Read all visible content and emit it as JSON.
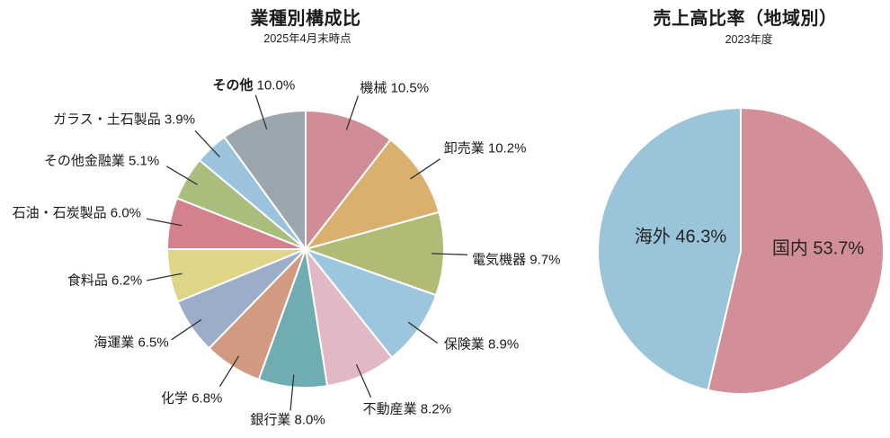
{
  "chart_data": [
    {
      "type": "pie",
      "title": "業種別構成比",
      "subtitle": "2025年4月末時点",
      "unit": "%",
      "start_angle": "12-oclock",
      "direction": "clockwise",
      "legend_position": "none",
      "label_style": "outside-with-leader-lines",
      "slices": [
        {
          "label": "機械",
          "value": 10.5,
          "color": "#d08d96"
        },
        {
          "label": "卸売業",
          "value": 10.2,
          "color": "#d9b06e"
        },
        {
          "label": "電気機器",
          "value": 9.7,
          "color": "#b1bb75"
        },
        {
          "label": "保険業",
          "value": 8.9,
          "color": "#9cc6de"
        },
        {
          "label": "不動産業",
          "value": 8.2,
          "color": "#e2b8c7"
        },
        {
          "label": "銀行業",
          "value": 8.0,
          "color": "#6fadb2"
        },
        {
          "label": "化学",
          "value": 6.8,
          "color": "#d19a81"
        },
        {
          "label": "海運業",
          "value": 6.5,
          "color": "#9badc8"
        },
        {
          "label": "食料品",
          "value": 6.2,
          "color": "#ded687"
        },
        {
          "label": "石油・石炭製品",
          "value": 6.0,
          "color": "#d5808d"
        },
        {
          "label": "その他金融業",
          "value": 5.1,
          "color": "#a9bd7d"
        },
        {
          "label": "ガラス・土石製品",
          "value": 3.9,
          "color": "#9bc3dd"
        },
        {
          "label": "その他",
          "value": 10.0,
          "color": "#9ba6ae"
        }
      ]
    },
    {
      "type": "pie",
      "title": "売上高比率（地域別）",
      "subtitle": "2023年度",
      "unit": "%",
      "start_angle": "12-oclock",
      "direction": "clockwise",
      "legend_position": "none",
      "label_style": "inside",
      "slices": [
        {
          "label": "国内",
          "value": 53.7,
          "color": "#d28f97"
        },
        {
          "label": "海外",
          "value": 46.3,
          "color": "#99c4d9"
        }
      ]
    }
  ],
  "leader_line_color": "#333333",
  "slice_border_color": "#ffffff"
}
